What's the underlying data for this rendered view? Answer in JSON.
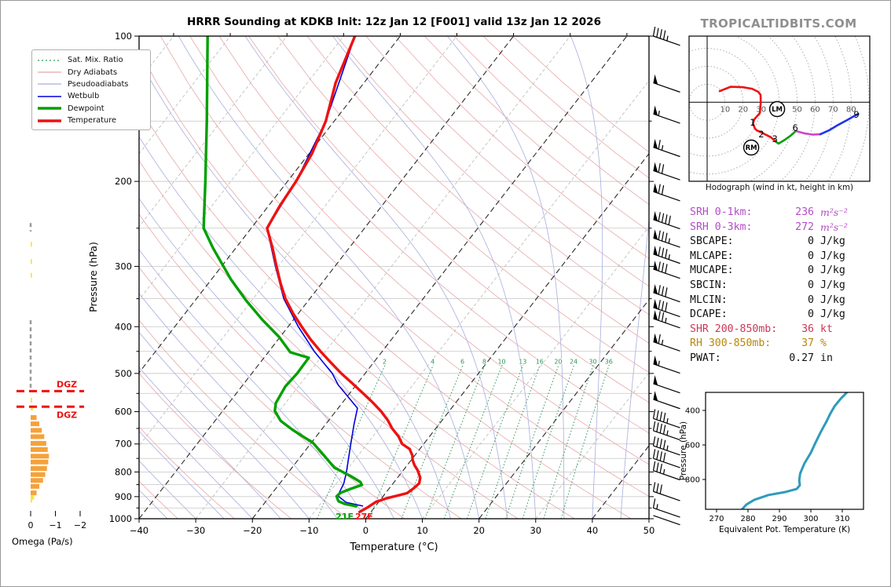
{
  "title": "HRRR Sounding at KDKB Init: 12z Jan 12 [F001] valid 13z Jan 12 2026",
  "watermark": "TROPICALTIDBITS.COM",
  "legend": {
    "items": [
      {
        "label": "Sat. Mix. Ratio",
        "color": "#2e9658",
        "dash": "2,3",
        "width": 1.2
      },
      {
        "label": "Dry Adiabats",
        "color": "#e8a8a8",
        "dash": "",
        "width": 1.2
      },
      {
        "label": "Pseudoadiabats",
        "color": "#a8aede",
        "dash": "",
        "width": 1.2
      },
      {
        "label": "Wetbulb",
        "color": "#0000dd",
        "dash": "",
        "width": 1.6
      },
      {
        "label": "Dewpoint",
        "color": "#00a000",
        "dash": "",
        "width": 3.5
      },
      {
        "label": "Temperature",
        "color": "#ee1111",
        "dash": "",
        "width": 3.5
      }
    ]
  },
  "chart_data": {
    "skewt": {
      "type": "line",
      "xlabel": "Temperature (°C)",
      "ylabel": "Pressure (hPa)",
      "xlim": [
        -40,
        50
      ],
      "x_ticks": [
        -40,
        -30,
        -20,
        -10,
        0,
        10,
        20,
        30,
        40,
        50
      ],
      "p_ticks": [
        100,
        200,
        300,
        400,
        500,
        600,
        700,
        800,
        900,
        1000
      ],
      "plim": [
        100,
        1000
      ],
      "mixing_ratio_values": [
        2,
        4,
        6,
        8,
        10,
        13,
        16,
        20,
        24,
        30,
        36
      ],
      "surface_labels": {
        "dewpoint_f": "21F",
        "temperature_f": "27F"
      },
      "series": [
        {
          "name": "Temperature",
          "color": "#ee1111",
          "width": 3.4,
          "points": [
            [
              100,
              -68
            ],
            [
              125,
              -65
            ],
            [
              150,
              -61.5
            ],
            [
              175,
              -59.5
            ],
            [
              200,
              -58.5
            ],
            [
              225,
              -58
            ],
            [
              250,
              -57.2
            ],
            [
              275,
              -53.5
            ],
            [
              300,
              -50.3
            ],
            [
              325,
              -47.3
            ],
            [
              350,
              -44.3
            ],
            [
              375,
              -41
            ],
            [
              400,
              -37.6
            ],
            [
              425,
              -34.3
            ],
            [
              450,
              -30.9
            ],
            [
              475,
              -27.5
            ],
            [
              500,
              -24.2
            ],
            [
              525,
              -20.8
            ],
            [
              550,
              -17.6
            ],
            [
              575,
              -14.6
            ],
            [
              600,
              -11.9
            ],
            [
              625,
              -9.6
            ],
            [
              650,
              -7.7
            ],
            [
              675,
              -5.5
            ],
            [
              700,
              -3.8
            ],
            [
              717,
              -1.8
            ],
            [
              740,
              -0.4
            ],
            [
              755,
              0.2
            ],
            [
              775,
              1.3
            ],
            [
              793,
              2.5
            ],
            [
              822,
              4.0
            ],
            [
              845,
              4.6
            ],
            [
              865,
              4.3
            ],
            [
              885,
              3.8
            ],
            [
              895,
              2.5
            ],
            [
              907,
              0.9
            ],
            [
              923,
              -0.5
            ],
            [
              947,
              -1.2
            ],
            [
              968,
              -2.0
            ]
          ]
        },
        {
          "name": "Dewpoint",
          "color": "#00a000",
          "width": 3.4,
          "points": [
            [
              100,
              -94
            ],
            [
              150,
              -82.5
            ],
            [
              200,
              -74.5
            ],
            [
              250,
              -68.4
            ],
            [
              275,
              -64
            ],
            [
              319,
              -56.6
            ],
            [
              353,
              -51
            ],
            [
              387,
              -45.5
            ],
            [
              420,
              -40.2
            ],
            [
              452,
              -36.1
            ],
            [
              464,
              -32.1
            ],
            [
              500,
              -32
            ],
            [
              532,
              -32.3
            ],
            [
              576,
              -31.7
            ],
            [
              598,
              -30.8
            ],
            [
              627,
              -28.4
            ],
            [
              655,
              -25
            ],
            [
              679,
              -21.9
            ],
            [
              694,
              -19.9
            ],
            [
              730,
              -16.8
            ],
            [
              784,
              -12.5
            ],
            [
              815,
              -8.6
            ],
            [
              839,
              -6
            ],
            [
              851,
              -5.3
            ],
            [
              869,
              -6.9
            ],
            [
              884,
              -8
            ],
            [
              899,
              -8.2
            ],
            [
              920,
              -7.2
            ],
            [
              932,
              -5.7
            ],
            [
              942,
              -3.4
            ]
          ]
        },
        {
          "name": "Wetbulb",
          "color": "#0000dd",
          "width": 1.6,
          "points": [
            [
              100,
              -68
            ],
            [
              150,
              -61.5
            ],
            [
              200,
              -58.5
            ],
            [
              250,
              -57.2
            ],
            [
              300,
              -50.5
            ],
            [
              350,
              -44.6
            ],
            [
              400,
              -38.2
            ],
            [
              450,
              -32
            ],
            [
              500,
              -25.8
            ],
            [
              528,
              -23.2
            ],
            [
              590,
              -16.6
            ],
            [
              637,
              -15
            ],
            [
              687,
              -13.3
            ],
            [
              740,
              -11.6
            ],
            [
              800,
              -9.8
            ],
            [
              845,
              -8.7
            ],
            [
              886,
              -8.2
            ],
            [
              896,
              -8.1
            ],
            [
              925,
              -5.7
            ],
            [
              941,
              -2.3
            ]
          ]
        }
      ]
    },
    "omega": {
      "type": "bar",
      "xlabel": "Omega (Pa/s)",
      "x_ticks": [
        0,
        -1,
        -2
      ],
      "units": "Pa/s",
      "bars": [
        [
          270,
          -0.04
        ],
        [
          293,
          -0.04
        ],
        [
          313,
          -0.04
        ],
        [
          568,
          -0.06
        ],
        [
          590,
          -0.1
        ],
        [
          617,
          -0.24
        ],
        [
          636,
          -0.35
        ],
        [
          656,
          -0.45
        ],
        [
          676,
          -0.55
        ],
        [
          698,
          -0.63
        ],
        [
          719,
          -0.69
        ],
        [
          742,
          -0.74
        ],
        [
          763,
          -0.71
        ],
        [
          787,
          -0.66
        ],
        [
          810,
          -0.59
        ],
        [
          833,
          -0.5
        ],
        [
          857,
          -0.35
        ],
        [
          884,
          -0.24
        ],
        [
          903,
          -0.14
        ],
        [
          916,
          -0.06
        ]
      ],
      "zero_line_segments_p": [
        [
          244,
          254
        ],
        [
          388,
          543
        ]
      ],
      "dgz": {
        "label": "DGZ",
        "lines_p": [
          544,
          586
        ]
      }
    },
    "wind_barbs": {
      "type": "wind-barbs",
      "units": "kt",
      "levels": [
        [
          100,
          45
        ],
        [
          125,
          50
        ],
        [
          145,
          55
        ],
        [
          170,
          65
        ],
        [
          190,
          70
        ],
        [
          210,
          70
        ],
        [
          240,
          90
        ],
        [
          262,
          85
        ],
        [
          283,
          85
        ],
        [
          304,
          80
        ],
        [
          340,
          80
        ],
        [
          365,
          80
        ],
        [
          385,
          75
        ],
        [
          430,
          65
        ],
        [
          478,
          55
        ],
        [
          525,
          50
        ],
        [
          566,
          50
        ],
        [
          620,
          45
        ],
        [
          657,
          45
        ],
        [
          706,
          45
        ],
        [
          750,
          40
        ],
        [
          795,
          35
        ],
        [
          878,
          30
        ],
        [
          950,
          15
        ],
        [
          985,
          2
        ]
      ]
    },
    "hodograph": {
      "type": "line",
      "caption": "Hodograph (wind in kt, height in km)",
      "ring_interval_kt": 10,
      "ring_labels": [
        10,
        20,
        30,
        50,
        60,
        70,
        80
      ],
      "segments": [
        {
          "name": "0-3km",
          "color": "#ee1111",
          "points": [
            [
              7,
              6.2
            ],
            [
              13,
              8.6
            ],
            [
              19.7,
              8.4
            ],
            [
              25,
              7.5
            ],
            [
              28.4,
              5.8
            ],
            [
              29.7,
              4.1
            ],
            [
              29.8,
              0
            ],
            [
              29.3,
              -6
            ],
            [
              26.2,
              -9.5
            ],
            [
              25.5,
              -12
            ],
            [
              26.5,
              -14.5
            ],
            [
              27.5,
              -15.6
            ],
            [
              30.5,
              -17
            ],
            [
              33.5,
              -18.5
            ],
            [
              35.4,
              -19.5
            ],
            [
              38.4,
              -22.1
            ]
          ]
        },
        {
          "name": "3-6km",
          "color": "#00a000",
          "points": [
            [
              38.4,
              -22.1
            ],
            [
              39.7,
              -23
            ],
            [
              43,
              -21
            ],
            [
              46.5,
              -18.5
            ],
            [
              49.3,
              -16
            ]
          ]
        },
        {
          "name": "6-9km",
          "color": "#cc44cc",
          "points": [
            [
              49.3,
              -16
            ],
            [
              54,
              -17.3
            ],
            [
              58.5,
              -18
            ],
            [
              62.9,
              -17.8
            ]
          ]
        },
        {
          "name": "9km+",
          "color": "#2233ee",
          "points": [
            [
              62.9,
              -17.8
            ],
            [
              68,
              -15.5
            ],
            [
              73,
              -12.5
            ],
            [
              78,
              -9.8
            ],
            [
              82,
              -7.5
            ],
            [
              84,
              -6.5
            ]
          ]
        }
      ],
      "height_labels": [
        {
          "text": "1",
          "u": 25.3,
          "v": -11.2
        },
        {
          "text": "2",
          "u": 30.1,
          "v": -17.8
        },
        {
          "text": "3",
          "u": 37.6,
          "v": -20.4
        },
        {
          "text": "6",
          "u": 49,
          "v": -14.2
        },
        {
          "text": "9",
          "u": 83,
          "v": -6.9
        }
      ],
      "markers": [
        {
          "text": "LM",
          "u": 38.9,
          "v": -3.8
        },
        {
          "text": "RM",
          "u": 24.5,
          "v": -25.2
        }
      ]
    },
    "indices": {
      "type": "table",
      "rows": [
        {
          "label": "SRH 0-1km:",
          "value": "236",
          "unit": "m²s⁻²",
          "color": "#b44bc8",
          "math": true
        },
        {
          "label": "SRH 0-3km:",
          "value": "272",
          "unit": "m²s⁻²",
          "color": "#b44bc8",
          "math": true
        },
        {
          "label": "SBCAPE:",
          "value": "0",
          "unit": "J/kg",
          "color": "#111111",
          "math": false
        },
        {
          "label": "MLCAPE:",
          "value": "0",
          "unit": "J/kg",
          "color": "#111111",
          "math": false
        },
        {
          "label": "MUCAPE:",
          "value": "0",
          "unit": "J/kg",
          "color": "#111111",
          "math": false
        },
        {
          "label": "SBCIN:",
          "value": "0",
          "unit": "J/kg",
          "color": "#111111",
          "math": false
        },
        {
          "label": "MLCIN:",
          "value": "0",
          "unit": "J/kg",
          "color": "#111111",
          "math": false
        },
        {
          "label": "DCAPE:",
          "value": "0",
          "unit": "J/kg",
          "color": "#111111",
          "math": false
        },
        {
          "label": "SHR 200-850mb:",
          "value": "36",
          "unit": "kt",
          "color": "#cd3756",
          "math": false
        },
        {
          "label": "RH 300-850mb:",
          "value": "37",
          "unit": "%",
          "color": "#b8860b",
          "math": false
        },
        {
          "label": "PWAT:",
          "value": "0.27",
          "unit": "in",
          "color": "#111111",
          "math": false
        }
      ]
    },
    "theta_e": {
      "type": "line",
      "xlabel": "Equivalent Pot. Temperature (K)",
      "ylabel": "Pressure (hPa)",
      "x_ticks": [
        270,
        280,
        290,
        300,
        310
      ],
      "p_ticks": [
        400,
        600,
        800
      ],
      "color": "#2d9cba",
      "points": [
        [
          278,
          975
        ],
        [
          279.5,
          945
        ],
        [
          282,
          918
        ],
        [
          286.5,
          890
        ],
        [
          292,
          872
        ],
        [
          295.5,
          855
        ],
        [
          296.5,
          833
        ],
        [
          296.3,
          805
        ],
        [
          296.6,
          765
        ],
        [
          298,
          705
        ],
        [
          300,
          645
        ],
        [
          301.6,
          582
        ],
        [
          303.2,
          523
        ],
        [
          305,
          463
        ],
        [
          306.2,
          418
        ],
        [
          307.5,
          377
        ],
        [
          309.5,
          332
        ],
        [
          311.5,
          295
        ]
      ]
    }
  }
}
